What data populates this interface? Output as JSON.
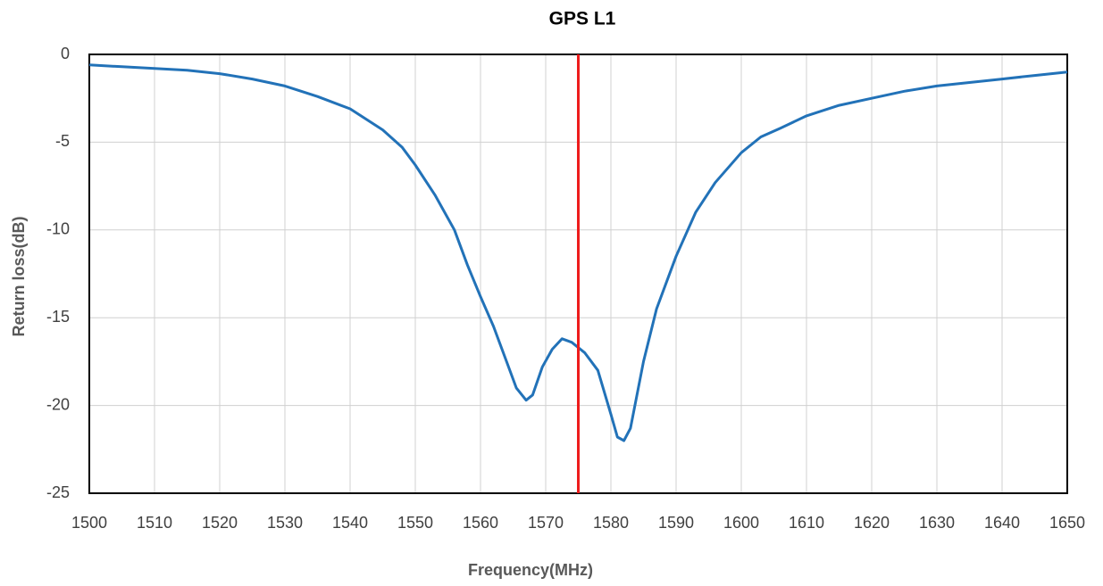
{
  "chart_data": {
    "type": "line",
    "title": "GPS L1",
    "xlabel": "Frequency(MHz)",
    "ylabel": "Return loss(dB)",
    "x": [
      1500,
      1505,
      1510,
      1515,
      1520,
      1525,
      1530,
      1535,
      1540,
      1545,
      1548,
      1550,
      1553,
      1556,
      1558,
      1560,
      1562,
      1564,
      1565.5,
      1567,
      1568,
      1569.5,
      1571,
      1572.5,
      1574,
      1576,
      1578,
      1580,
      1581,
      1582,
      1583,
      1585,
      1587,
      1590,
      1593,
      1596,
      1600,
      1603,
      1606,
      1610,
      1615,
      1620,
      1625,
      1630,
      1635,
      1640,
      1645,
      1650
    ],
    "series": [
      {
        "color": "#2272b8",
        "values": [
          -0.6,
          -0.7,
          -0.8,
          -0.9,
          -1.1,
          -1.4,
          -1.8,
          -2.4,
          -3.1,
          -4.3,
          -5.3,
          -6.3,
          -8.0,
          -10.0,
          -12.0,
          -13.8,
          -15.5,
          -17.5,
          -19.0,
          -19.7,
          -19.4,
          -17.8,
          -16.8,
          -16.2,
          -16.4,
          -17.0,
          -18.0,
          -20.5,
          -21.8,
          -22.0,
          -21.3,
          -17.5,
          -14.5,
          -11.5,
          -9.0,
          -7.3,
          -5.6,
          -4.7,
          -4.2,
          -3.5,
          -2.9,
          -2.5,
          -2.1,
          -1.8,
          -1.6,
          -1.4,
          -1.2,
          -1.0
        ]
      }
    ],
    "vline": {
      "x": 1575,
      "color": "#ee1c1c"
    },
    "xlim": [
      1500,
      1650
    ],
    "xticks": [
      1500,
      1510,
      1520,
      1530,
      1540,
      1550,
      1560,
      1570,
      1580,
      1590,
      1600,
      1610,
      1620,
      1630,
      1640,
      1650
    ],
    "ylim": [
      -25,
      0
    ],
    "yticks": [
      0,
      -5,
      -10,
      -15,
      -20,
      -25
    ],
    "grid": true
  }
}
